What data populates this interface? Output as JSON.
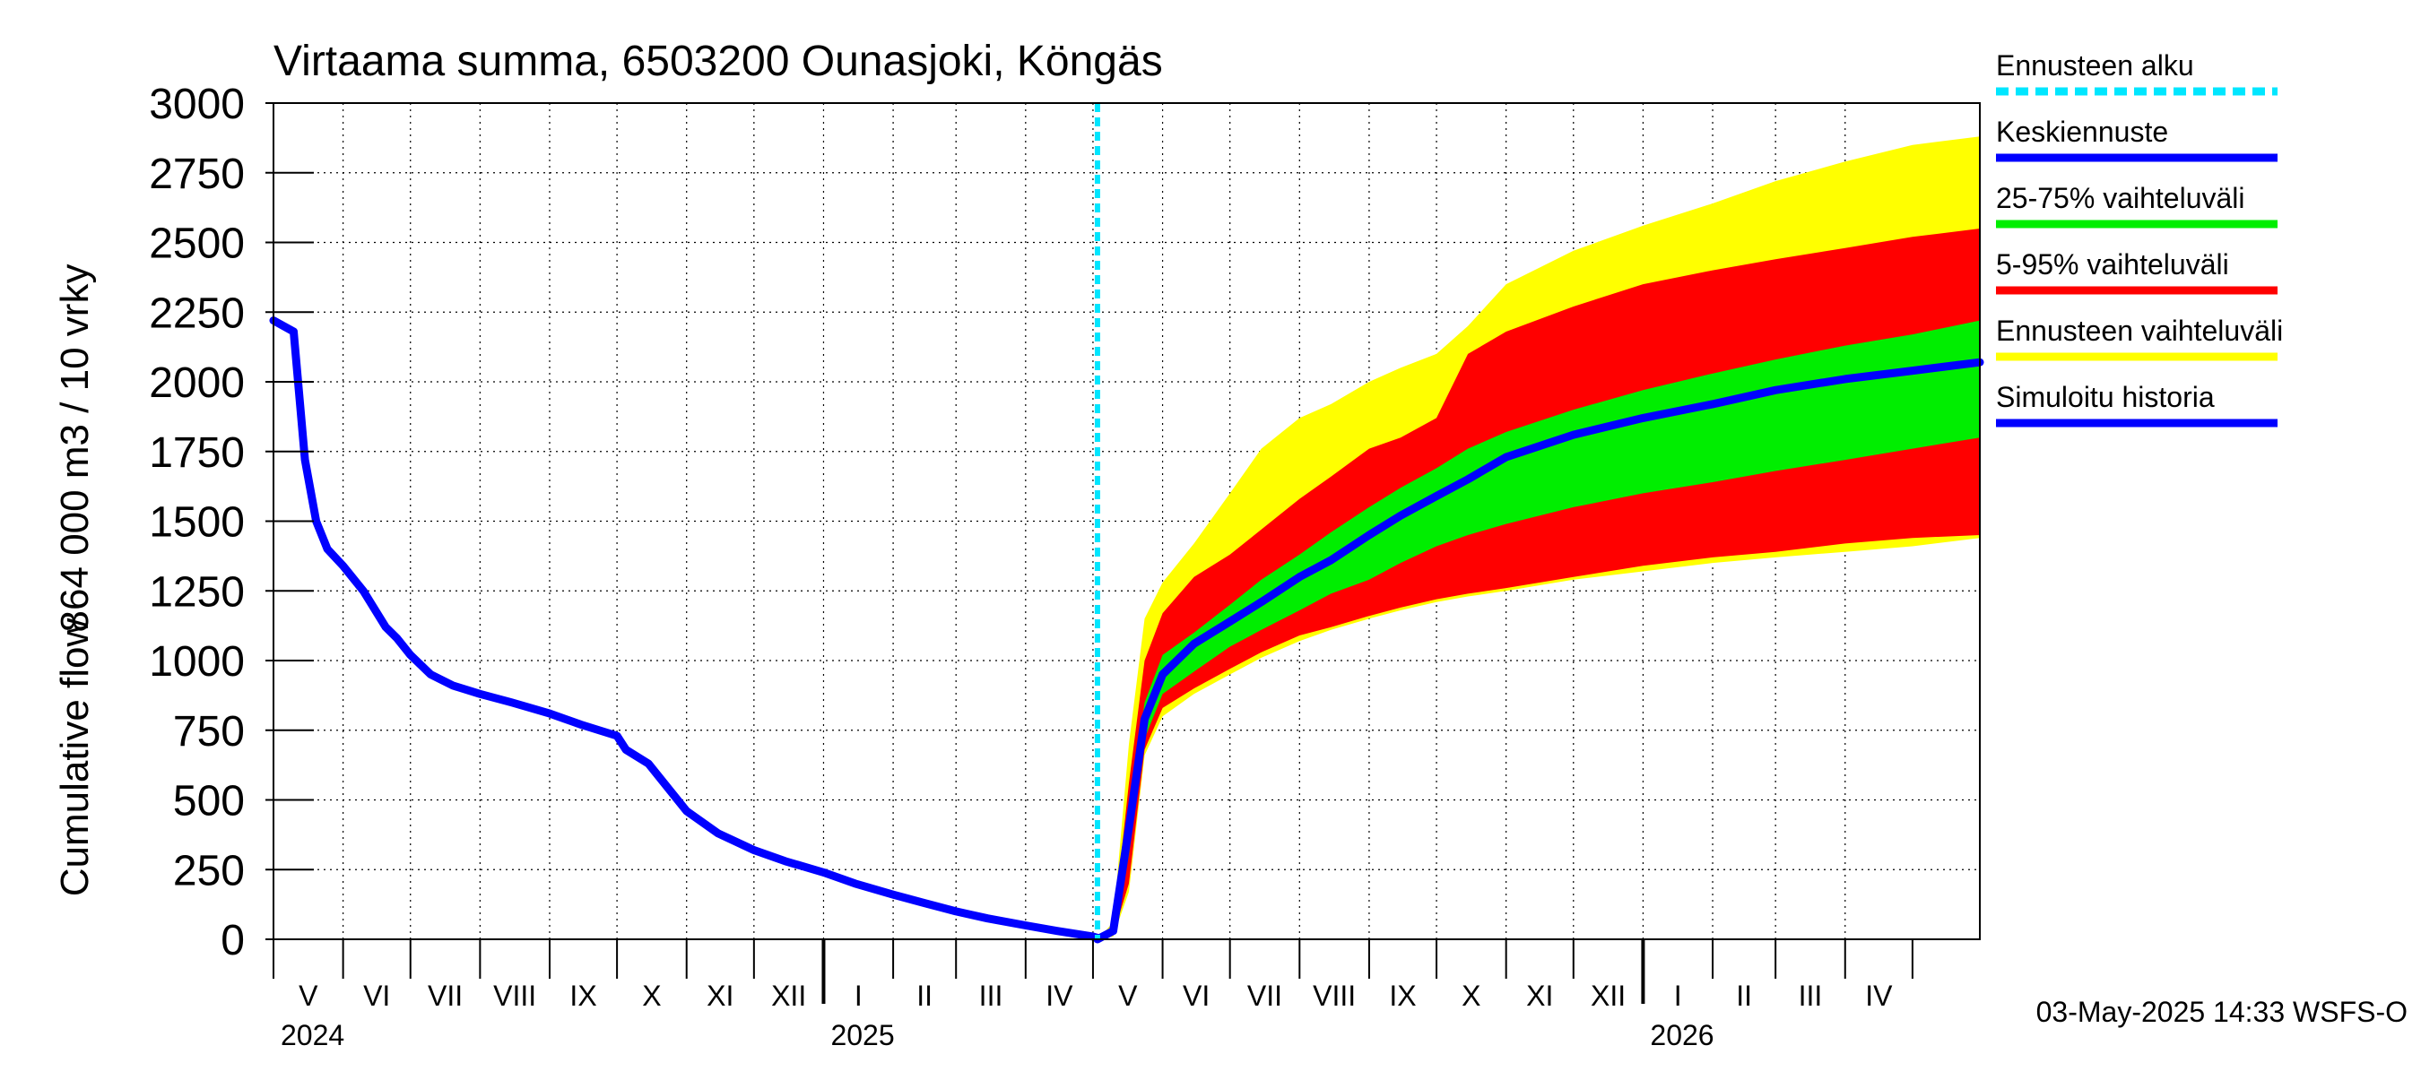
{
  "chart_data": {
    "type": "area",
    "title": "Virtaama summa, 6503200 Ounasjoki, Köngäs",
    "ylabel_top": "864 000 m3 / 10 vrky",
    "ylabel_bottom": "Cumulative flow",
    "ylim": [
      0,
      3000
    ],
    "yticks": [
      "0",
      "250",
      "500",
      "750",
      "1000",
      "1250",
      "1500",
      "1750",
      "2000",
      "2250",
      "2500",
      "2750",
      "3000"
    ],
    "ytick_values": [
      0,
      250,
      500,
      750,
      1000,
      1250,
      1500,
      1750,
      2000,
      2250,
      2500,
      2750,
      3000
    ],
    "x_start": "2024-05-01",
    "x_end": "2026-05-31",
    "forecast_start": "2025-05-03",
    "grid": true,
    "months": [
      {
        "label": "V",
        "start": "2024-05-01"
      },
      {
        "label": "VI",
        "start": "2024-06-01"
      },
      {
        "label": "VII",
        "start": "2024-07-01"
      },
      {
        "label": "VIII",
        "start": "2024-08-01"
      },
      {
        "label": "IX",
        "start": "2024-09-01"
      },
      {
        "label": "X",
        "start": "2024-10-01"
      },
      {
        "label": "XI",
        "start": "2024-11-01"
      },
      {
        "label": "XII",
        "start": "2024-12-01"
      },
      {
        "label": "I",
        "start": "2025-01-01"
      },
      {
        "label": "II",
        "start": "2025-02-01"
      },
      {
        "label": "III",
        "start": "2025-03-01"
      },
      {
        "label": "IV",
        "start": "2025-04-01"
      },
      {
        "label": "V",
        "start": "2025-05-01"
      },
      {
        "label": "VI",
        "start": "2025-06-01"
      },
      {
        "label": "VII",
        "start": "2025-07-01"
      },
      {
        "label": "VIII",
        "start": "2025-08-01"
      },
      {
        "label": "IX",
        "start": "2025-09-01"
      },
      {
        "label": "X",
        "start": "2025-10-01"
      },
      {
        "label": "XI",
        "start": "2025-11-01"
      },
      {
        "label": "XII",
        "start": "2025-12-01"
      },
      {
        "label": "I",
        "start": "2026-01-01"
      },
      {
        "label": "II",
        "start": "2026-02-01"
      },
      {
        "label": "III",
        "start": "2026-03-01"
      },
      {
        "label": "IV",
        "start": "2026-04-01"
      }
    ],
    "month_end": "2026-05-01",
    "years": [
      {
        "label": "2024",
        "date": "2024-05-01"
      },
      {
        "label": "2025",
        "date": "2025-01-01"
      },
      {
        "label": "2026",
        "date": "2026-01-01"
      }
    ],
    "x": [
      "2025-05-03",
      "2025-05-10",
      "2025-05-17",
      "2025-05-24",
      "2025-06-01",
      "2025-06-15",
      "2025-07-01",
      "2025-07-15",
      "2025-08-01",
      "2025-08-15",
      "2025-09-01",
      "2025-09-15",
      "2025-10-01",
      "2025-10-15",
      "2025-11-01",
      "2025-12-01",
      "2026-01-01",
      "2026-02-01",
      "2026-03-01",
      "2026-04-01",
      "2026-05-01",
      "2026-05-31"
    ],
    "series": [
      {
        "name": "Ennusteen vaihteluväli",
        "role": "band",
        "color": "#ffff00",
        "low": [
          0,
          10,
          170,
          660,
          800,
          880,
          950,
          1010,
          1070,
          1110,
          1150,
          1180,
          1210,
          1230,
          1250,
          1290,
          1320,
          1350,
          1370,
          1390,
          1410,
          1440
        ],
        "high": [
          0,
          60,
          700,
          1150,
          1280,
          1420,
          1600,
          1760,
          1870,
          1920,
          2000,
          2050,
          2100,
          2200,
          2350,
          2470,
          2560,
          2640,
          2720,
          2790,
          2850,
          2880
        ]
      },
      {
        "name": "5-95% vaihteluväli",
        "role": "band",
        "color": "#ff0000",
        "low": [
          0,
          15,
          200,
          680,
          830,
          900,
          970,
          1030,
          1090,
          1120,
          1160,
          1190,
          1220,
          1240,
          1260,
          1300,
          1340,
          1370,
          1390,
          1420,
          1440,
          1450
        ],
        "high": [
          0,
          40,
          560,
          1000,
          1170,
          1300,
          1380,
          1470,
          1580,
          1660,
          1760,
          1800,
          1870,
          2100,
          2180,
          2270,
          2350,
          2400,
          2440,
          2480,
          2520,
          2550
        ]
      },
      {
        "name": "25-75% vaihteluväli",
        "role": "band",
        "color": "#00ee00",
        "low": [
          0,
          20,
          300,
          720,
          880,
          960,
          1050,
          1110,
          1180,
          1240,
          1290,
          1350,
          1410,
          1450,
          1490,
          1550,
          1600,
          1640,
          1680,
          1720,
          1760,
          1800
        ],
        "high": [
          0,
          35,
          450,
          850,
          1020,
          1100,
          1200,
          1290,
          1380,
          1460,
          1550,
          1620,
          1690,
          1760,
          1820,
          1900,
          1970,
          2030,
          2080,
          2130,
          2170,
          2220
        ]
      },
      {
        "name": "Keskiennuste",
        "role": "line",
        "color": "#0000ff",
        "values": [
          0,
          30,
          400,
          790,
          950,
          1060,
          1140,
          1210,
          1300,
          1360,
          1450,
          1520,
          1590,
          1650,
          1730,
          1810,
          1870,
          1920,
          1970,
          2010,
          2040,
          2070
        ]
      },
      {
        "name": "Simuloitu historia",
        "role": "line",
        "color": "#0000ff",
        "x": [
          "2024-05-01",
          "2024-05-10",
          "2024-05-15",
          "2024-05-20",
          "2024-05-25",
          "2024-06-01",
          "2024-06-10",
          "2024-06-20",
          "2024-06-25",
          "2024-07-01",
          "2024-07-10",
          "2024-07-20",
          "2024-08-01",
          "2024-08-15",
          "2024-09-01",
          "2024-09-15",
          "2024-10-01",
          "2024-10-05",
          "2024-10-15",
          "2024-10-25",
          "2024-11-01",
          "2024-11-15",
          "2024-12-01",
          "2024-12-15",
          "2025-01-01",
          "2025-01-15",
          "2025-02-01",
          "2025-02-15",
          "2025-03-01",
          "2025-03-15",
          "2025-04-01",
          "2025-04-15",
          "2025-05-01",
          "2025-05-03"
        ],
        "values": [
          2220,
          2180,
          1720,
          1500,
          1400,
          1340,
          1250,
          1120,
          1080,
          1020,
          950,
          910,
          880,
          850,
          810,
          770,
          730,
          680,
          630,
          530,
          460,
          380,
          320,
          280,
          240,
          200,
          160,
          130,
          100,
          75,
          50,
          30,
          10,
          5
        ]
      }
    ],
    "legend": [
      {
        "label": "Ennusteen alku",
        "color": "#00e6ff",
        "style": "dashed"
      },
      {
        "label": "Keskiennuste",
        "color": "#0000ff",
        "style": "solid"
      },
      {
        "label": "25-75% vaihteluväli",
        "color": "#00ee00",
        "style": "solid"
      },
      {
        "label": "5-95% vaihteluväli",
        "color": "#ff0000",
        "style": "solid"
      },
      {
        "label": "Ennusteen vaihteluväli",
        "color": "#ffff00",
        "style": "solid"
      },
      {
        "label": "Simuloitu historia",
        "color": "#0000ff",
        "style": "solid"
      }
    ],
    "legend_position": "right",
    "footer": "03-May-2025 14:33 WSFS-O"
  }
}
